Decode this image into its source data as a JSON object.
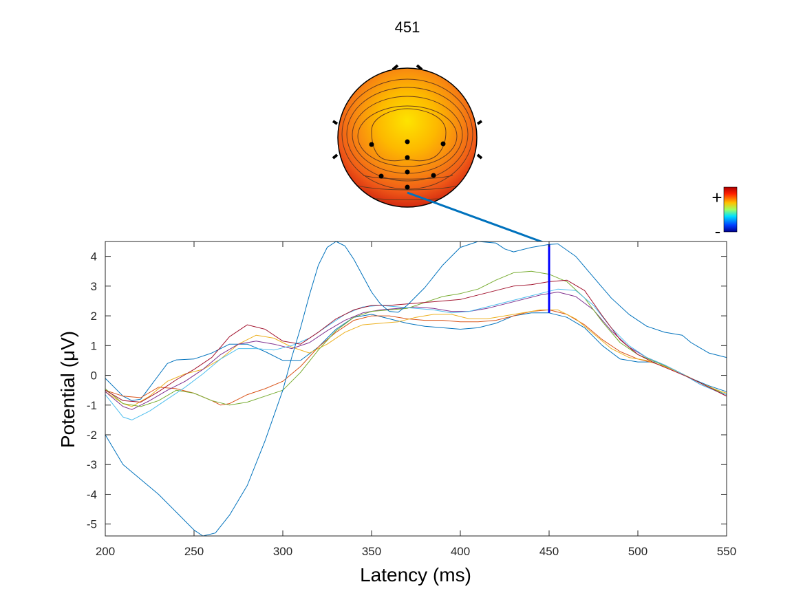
{
  "chart_data": {
    "type": "line",
    "title": "451",
    "xlabel": "Latency (ms)",
    "ylabel": "Potential (μV)",
    "xlim": [
      200,
      550
    ],
    "ylim": [
      -5.4,
      4.5
    ],
    "xticks": [
      200,
      250,
      300,
      350,
      400,
      450,
      500,
      550
    ],
    "yticks": [
      -5,
      -4,
      -3,
      -2,
      -1,
      0,
      1,
      2,
      3,
      4
    ],
    "grid": false,
    "marker_latency": 450,
    "marker_range": [
      2.1,
      4.4
    ],
    "colorbar": {
      "plus_label": "+",
      "minus_label": "-"
    },
    "series": [
      {
        "color": "#0072BD",
        "points": [
          [
            200,
            -0.1
          ],
          [
            205,
            -0.4
          ],
          [
            210,
            -0.7
          ],
          [
            215,
            -0.85
          ],
          [
            220,
            -0.8
          ],
          [
            225,
            -0.4
          ],
          [
            230,
            0.0
          ],
          [
            235,
            0.4
          ],
          [
            240,
            0.52
          ],
          [
            250,
            0.55
          ],
          [
            260,
            0.75
          ],
          [
            270,
            1.05
          ],
          [
            280,
            1.05
          ],
          [
            290,
            0.8
          ],
          [
            300,
            0.5
          ],
          [
            310,
            0.5
          ],
          [
            320,
            0.95
          ],
          [
            330,
            1.55
          ],
          [
            340,
            1.95
          ],
          [
            350,
            2.05
          ],
          [
            360,
            1.9
          ],
          [
            370,
            1.75
          ],
          [
            380,
            1.65
          ],
          [
            390,
            1.6
          ],
          [
            400,
            1.55
          ],
          [
            410,
            1.6
          ],
          [
            420,
            1.75
          ],
          [
            430,
            2.0
          ],
          [
            440,
            2.1
          ],
          [
            450,
            2.1
          ],
          [
            460,
            1.95
          ],
          [
            470,
            1.6
          ],
          [
            480,
            1.0
          ],
          [
            490,
            0.55
          ],
          [
            500,
            0.45
          ],
          [
            510,
            0.45
          ],
          [
            520,
            0.2
          ],
          [
            530,
            -0.1
          ],
          [
            540,
            -0.35
          ],
          [
            550,
            -0.55
          ]
        ]
      },
      {
        "color": "#D95319",
        "points": [
          [
            200,
            -0.5
          ],
          [
            210,
            -0.7
          ],
          [
            220,
            -0.75
          ],
          [
            230,
            -0.4
          ],
          [
            240,
            -0.45
          ],
          [
            250,
            -0.6
          ],
          [
            260,
            -0.85
          ],
          [
            265,
            -1.0
          ],
          [
            270,
            -0.95
          ],
          [
            280,
            -0.65
          ],
          [
            290,
            -0.45
          ],
          [
            300,
            -0.2
          ],
          [
            310,
            0.3
          ],
          [
            320,
            0.95
          ],
          [
            330,
            1.45
          ],
          [
            340,
            1.85
          ],
          [
            350,
            2.0
          ],
          [
            360,
            2.0
          ],
          [
            370,
            1.9
          ],
          [
            380,
            1.85
          ],
          [
            390,
            1.85
          ],
          [
            400,
            1.8
          ],
          [
            410,
            1.8
          ],
          [
            420,
            1.85
          ],
          [
            430,
            2.0
          ],
          [
            440,
            2.15
          ],
          [
            450,
            2.2
          ],
          [
            460,
            2.05
          ],
          [
            470,
            1.7
          ],
          [
            480,
            1.2
          ],
          [
            490,
            0.8
          ],
          [
            500,
            0.55
          ],
          [
            510,
            0.4
          ],
          [
            520,
            0.2
          ],
          [
            530,
            -0.1
          ],
          [
            540,
            -0.4
          ],
          [
            550,
            -0.7
          ]
        ]
      },
      {
        "color": "#EDB120",
        "points": [
          [
            200,
            -0.55
          ],
          [
            210,
            -0.95
          ],
          [
            215,
            -1.05
          ],
          [
            225,
            -0.7
          ],
          [
            235,
            -0.2
          ],
          [
            245,
            0.05
          ],
          [
            255,
            0.2
          ],
          [
            265,
            0.55
          ],
          [
            275,
            1.05
          ],
          [
            285,
            1.35
          ],
          [
            295,
            1.25
          ],
          [
            305,
            0.95
          ],
          [
            315,
            0.75
          ],
          [
            325,
            1.05
          ],
          [
            335,
            1.45
          ],
          [
            345,
            1.7
          ],
          [
            355,
            1.75
          ],
          [
            365,
            1.8
          ],
          [
            375,
            1.95
          ],
          [
            385,
            2.05
          ],
          [
            395,
            2.05
          ],
          [
            405,
            1.9
          ],
          [
            415,
            1.9
          ],
          [
            425,
            2.0
          ],
          [
            435,
            2.1
          ],
          [
            445,
            2.2
          ],
          [
            455,
            2.2
          ],
          [
            465,
            1.9
          ],
          [
            475,
            1.4
          ],
          [
            485,
            0.9
          ],
          [
            495,
            0.6
          ],
          [
            505,
            0.5
          ],
          [
            515,
            0.3
          ],
          [
            525,
            0.05
          ],
          [
            535,
            -0.25
          ],
          [
            545,
            -0.5
          ],
          [
            550,
            -0.6
          ]
        ]
      },
      {
        "color": "#7E2F8E",
        "points": [
          [
            200,
            -0.55
          ],
          [
            210,
            -1.05
          ],
          [
            215,
            -1.15
          ],
          [
            225,
            -0.85
          ],
          [
            235,
            -0.5
          ],
          [
            245,
            -0.2
          ],
          [
            255,
            0.2
          ],
          [
            265,
            0.7
          ],
          [
            275,
            1.05
          ],
          [
            285,
            1.15
          ],
          [
            295,
            1.05
          ],
          [
            305,
            0.9
          ],
          [
            315,
            1.1
          ],
          [
            325,
            1.5
          ],
          [
            335,
            1.85
          ],
          [
            345,
            2.1
          ],
          [
            355,
            2.2
          ],
          [
            365,
            2.25
          ],
          [
            375,
            2.3
          ],
          [
            385,
            2.25
          ],
          [
            395,
            2.15
          ],
          [
            405,
            2.15
          ],
          [
            415,
            2.25
          ],
          [
            425,
            2.4
          ],
          [
            435,
            2.55
          ],
          [
            445,
            2.7
          ],
          [
            455,
            2.8
          ],
          [
            465,
            2.65
          ],
          [
            475,
            2.2
          ],
          [
            485,
            1.5
          ],
          [
            495,
            0.95
          ],
          [
            505,
            0.6
          ],
          [
            515,
            0.35
          ],
          [
            525,
            0.05
          ],
          [
            535,
            -0.3
          ],
          [
            545,
            -0.55
          ],
          [
            550,
            -0.7
          ]
        ]
      },
      {
        "color": "#77AC30",
        "points": [
          [
            200,
            -0.45
          ],
          [
            210,
            -0.95
          ],
          [
            220,
            -1.05
          ],
          [
            230,
            -0.85
          ],
          [
            240,
            -0.5
          ],
          [
            250,
            -0.6
          ],
          [
            260,
            -0.85
          ],
          [
            270,
            -1.0
          ],
          [
            280,
            -0.9
          ],
          [
            290,
            -0.7
          ],
          [
            300,
            -0.5
          ],
          [
            310,
            0.1
          ],
          [
            320,
            0.85
          ],
          [
            330,
            1.5
          ],
          [
            340,
            1.95
          ],
          [
            350,
            2.15
          ],
          [
            360,
            2.2
          ],
          [
            370,
            2.25
          ],
          [
            380,
            2.45
          ],
          [
            390,
            2.65
          ],
          [
            400,
            2.75
          ],
          [
            410,
            2.9
          ],
          [
            420,
            3.2
          ],
          [
            430,
            3.45
          ],
          [
            440,
            3.5
          ],
          [
            450,
            3.4
          ],
          [
            460,
            3.15
          ],
          [
            470,
            2.6
          ],
          [
            480,
            1.8
          ],
          [
            490,
            1.1
          ],
          [
            500,
            0.7
          ],
          [
            510,
            0.45
          ],
          [
            520,
            0.2
          ],
          [
            530,
            -0.1
          ],
          [
            540,
            -0.4
          ],
          [
            550,
            -0.65
          ]
        ]
      },
      {
        "color": "#4DBEEE",
        "points": [
          [
            200,
            -0.65
          ],
          [
            210,
            -1.4
          ],
          [
            215,
            -1.5
          ],
          [
            225,
            -1.2
          ],
          [
            235,
            -0.8
          ],
          [
            245,
            -0.4
          ],
          [
            255,
            0.05
          ],
          [
            265,
            0.55
          ],
          [
            275,
            0.9
          ],
          [
            285,
            0.9
          ],
          [
            295,
            0.85
          ],
          [
            305,
            1.0
          ],
          [
            315,
            1.25
          ],
          [
            325,
            1.65
          ],
          [
            335,
            2.05
          ],
          [
            345,
            2.3
          ],
          [
            355,
            2.35
          ],
          [
            365,
            2.3
          ],
          [
            375,
            2.25
          ],
          [
            385,
            2.2
          ],
          [
            395,
            2.1
          ],
          [
            405,
            2.15
          ],
          [
            415,
            2.3
          ],
          [
            425,
            2.45
          ],
          [
            435,
            2.6
          ],
          [
            445,
            2.75
          ],
          [
            455,
            2.9
          ],
          [
            465,
            2.85
          ],
          [
            475,
            2.35
          ],
          [
            485,
            1.6
          ],
          [
            495,
            1.0
          ],
          [
            505,
            0.6
          ],
          [
            515,
            0.35
          ],
          [
            525,
            0.05
          ],
          [
            535,
            -0.3
          ],
          [
            545,
            -0.55
          ],
          [
            550,
            -0.65
          ]
        ]
      },
      {
        "color": "#A2142F",
        "points": [
          [
            200,
            -0.5
          ],
          [
            210,
            -0.85
          ],
          [
            220,
            -0.9
          ],
          [
            230,
            -0.55
          ],
          [
            240,
            -0.15
          ],
          [
            250,
            0.2
          ],
          [
            260,
            0.6
          ],
          [
            270,
            1.3
          ],
          [
            280,
            1.7
          ],
          [
            290,
            1.55
          ],
          [
            300,
            1.15
          ],
          [
            310,
            1.05
          ],
          [
            320,
            1.45
          ],
          [
            330,
            1.9
          ],
          [
            340,
            2.2
          ],
          [
            350,
            2.35
          ],
          [
            360,
            2.35
          ],
          [
            370,
            2.4
          ],
          [
            380,
            2.45
          ],
          [
            390,
            2.5
          ],
          [
            400,
            2.55
          ],
          [
            410,
            2.7
          ],
          [
            420,
            2.85
          ],
          [
            430,
            3.0
          ],
          [
            440,
            3.05
          ],
          [
            450,
            3.15
          ],
          [
            460,
            3.2
          ],
          [
            470,
            2.85
          ],
          [
            480,
            2.0
          ],
          [
            490,
            1.2
          ],
          [
            500,
            0.7
          ],
          [
            510,
            0.4
          ],
          [
            520,
            0.15
          ],
          [
            530,
            -0.1
          ],
          [
            540,
            -0.4
          ],
          [
            550,
            -0.7
          ]
        ]
      },
      {
        "color": "#0072BD",
        "points": [
          [
            200,
            -2.0
          ],
          [
            210,
            -3.0
          ],
          [
            220,
            -3.5
          ],
          [
            230,
            -4.0
          ],
          [
            240,
            -4.6
          ],
          [
            250,
            -5.2
          ],
          [
            255,
            -5.4
          ],
          [
            262,
            -5.3
          ],
          [
            270,
            -4.7
          ],
          [
            280,
            -3.7
          ],
          [
            290,
            -2.2
          ],
          [
            300,
            -0.5
          ],
          [
            305,
            0.6
          ],
          [
            310,
            1.6
          ],
          [
            315,
            2.7
          ],
          [
            320,
            3.7
          ],
          [
            325,
            4.3
          ],
          [
            330,
            4.5
          ],
          [
            335,
            4.35
          ],
          [
            340,
            3.9
          ],
          [
            345,
            3.35
          ],
          [
            350,
            2.8
          ],
          [
            355,
            2.4
          ],
          [
            360,
            2.15
          ],
          [
            365,
            2.12
          ],
          [
            370,
            2.35
          ],
          [
            380,
            2.95
          ],
          [
            390,
            3.7
          ],
          [
            400,
            4.3
          ],
          [
            410,
            4.5
          ],
          [
            420,
            4.45
          ],
          [
            425,
            4.25
          ],
          [
            430,
            4.15
          ],
          [
            440,
            4.3
          ],
          [
            450,
            4.4
          ],
          [
            455,
            4.42
          ],
          [
            465,
            4.0
          ],
          [
            475,
            3.3
          ],
          [
            485,
            2.6
          ],
          [
            495,
            2.05
          ],
          [
            505,
            1.65
          ],
          [
            515,
            1.45
          ],
          [
            525,
            1.35
          ],
          [
            530,
            1.1
          ],
          [
            540,
            0.75
          ],
          [
            550,
            0.6
          ]
        ]
      }
    ]
  }
}
